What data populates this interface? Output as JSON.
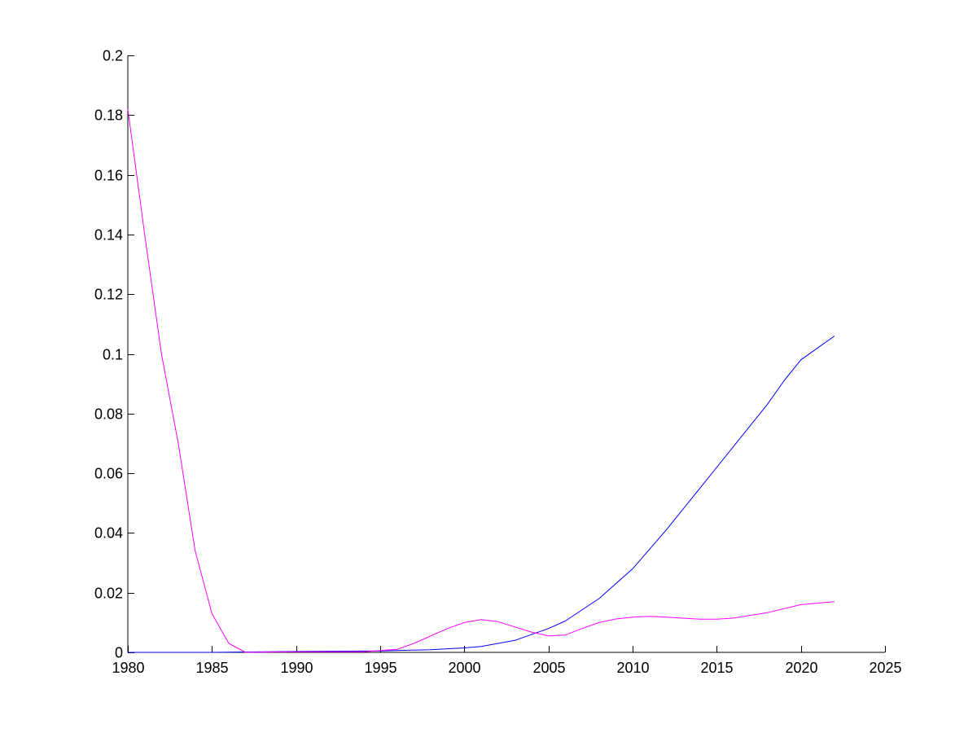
{
  "chart_data": {
    "type": "line",
    "title": "",
    "xlabel": "",
    "ylabel": "",
    "xlim": [
      1980,
      2025
    ],
    "ylim": [
      0,
      0.2
    ],
    "x_ticks": [
      1980,
      1985,
      1990,
      1995,
      2000,
      2005,
      2010,
      2015,
      2020,
      2025
    ],
    "x_tick_labels": [
      "1980",
      "1985",
      "1990",
      "1995",
      "2000",
      "2005",
      "2010",
      "2015",
      "2020",
      "2025"
    ],
    "y_ticks": [
      0,
      0.02,
      0.04,
      0.06,
      0.08,
      0.1,
      0.12,
      0.14,
      0.16,
      0.18,
      0.2
    ],
    "y_tick_labels": [
      "0",
      "0.02",
      "0.04",
      "0.06",
      "0.08",
      "0.1",
      "0.12",
      "0.14",
      "0.16",
      "0.18",
      "0.2"
    ],
    "grid": false,
    "legend": "none",
    "series": [
      {
        "color": "#0000ff",
        "x": [
          1980,
          1985,
          1990,
          1995,
          1998,
          2000,
          2001,
          2003,
          2005,
          2006,
          2008,
          2010,
          2012,
          2014,
          2016,
          2018,
          2019,
          2020,
          2021,
          2022
        ],
        "y": [
          0,
          0,
          0.0003,
          0.0005,
          0.0009,
          0.0015,
          0.002,
          0.004,
          0.008,
          0.0105,
          0.018,
          0.028,
          0.041,
          0.055,
          0.069,
          0.083,
          0.091,
          0.098,
          0.102,
          0.106
        ]
      },
      {
        "color": "#ff00ff",
        "x": [
          1980,
          1981,
          1982,
          1983,
          1984,
          1985,
          1986,
          1987,
          1990,
          1994,
          1996,
          1997,
          1999,
          2000,
          2001,
          2002,
          2003,
          2004,
          2005,
          2006,
          2007,
          2008,
          2009,
          2010,
          2011,
          2012,
          2014,
          2015,
          2016,
          2018,
          2020,
          2022
        ],
        "y": [
          0.182,
          0.14,
          0.1,
          0.07,
          0.034,
          0.013,
          0.003,
          0,
          0.0002,
          0.0002,
          0.001,
          0.003,
          0.008,
          0.01,
          0.011,
          0.0103,
          0.0085,
          0.0068,
          0.0055,
          0.0058,
          0.008,
          0.01,
          0.0112,
          0.0118,
          0.0121,
          0.0118,
          0.0111,
          0.0111,
          0.0115,
          0.0133,
          0.016,
          0.017
        ]
      }
    ]
  }
}
